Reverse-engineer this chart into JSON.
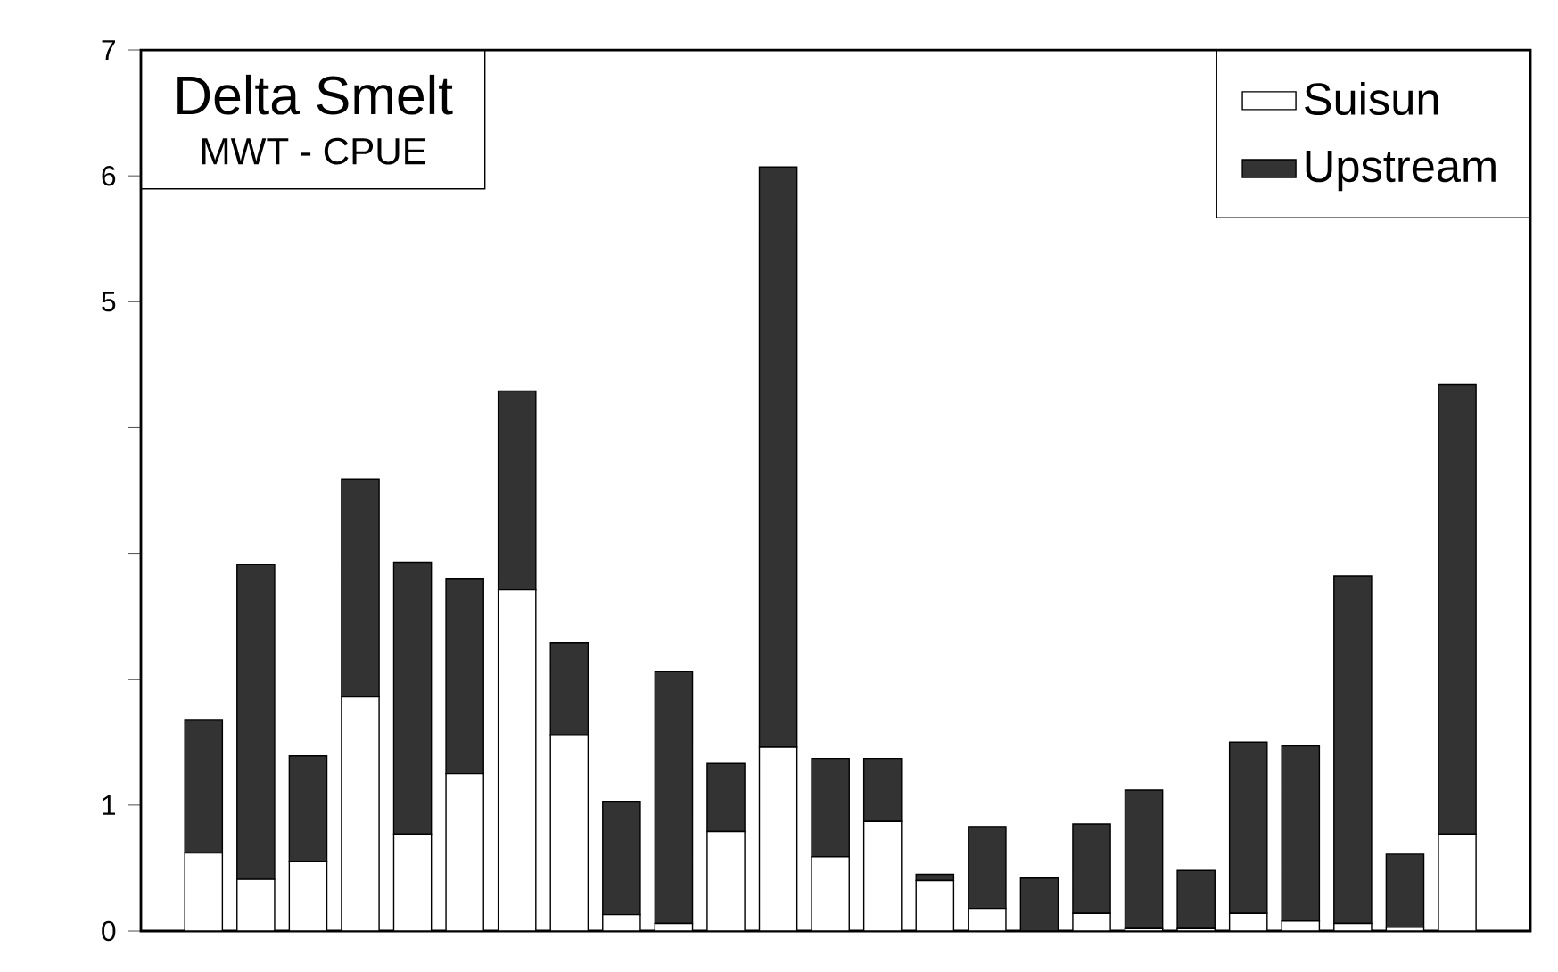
{
  "chart_data": {
    "type": "bar",
    "title": "Delta Smelt",
    "subtitle": "MWT - CPUE",
    "stacked": true,
    "categories": [
      null,
      null,
      null,
      null,
      null,
      null,
      null,
      null,
      null,
      null,
      null,
      null,
      null,
      null,
      null,
      null,
      null,
      null,
      null,
      null,
      null,
      null,
      null,
      null,
      null
    ],
    "series": [
      {
        "name": "Suisun",
        "color": "#ffffff",
        "values": [
          0.62,
          0.41,
          0.55,
          1.86,
          0.77,
          1.25,
          2.71,
          1.56,
          0.13,
          0.06,
          0.79,
          1.46,
          0.59,
          0.87,
          0.4,
          0.18,
          null,
          0.14,
          0.02,
          0.02,
          0.14,
          0.08,
          0.06,
          0.03,
          0.77
        ]
      },
      {
        "name": "Upstream",
        "color": "#333333",
        "values": [
          1.06,
          2.5,
          0.84,
          1.73,
          2.16,
          1.55,
          1.58,
          0.73,
          0.9,
          2.0,
          0.54,
          4.61,
          0.78,
          0.5,
          0.05,
          0.65,
          0.42,
          0.71,
          1.1,
          0.46,
          1.36,
          1.39,
          2.76,
          0.58,
          3.57
        ]
      }
    ],
    "ylim": [
      0,
      7
    ],
    "yticks": [
      0,
      1,
      {
        "value": 2,
        "label": null
      },
      {
        "value": 3,
        "label": null
      },
      {
        "value": 4,
        "label": null
      },
      5,
      6,
      7
    ],
    "tick_labels": "y",
    "legend": "top right",
    "grid": false
  }
}
